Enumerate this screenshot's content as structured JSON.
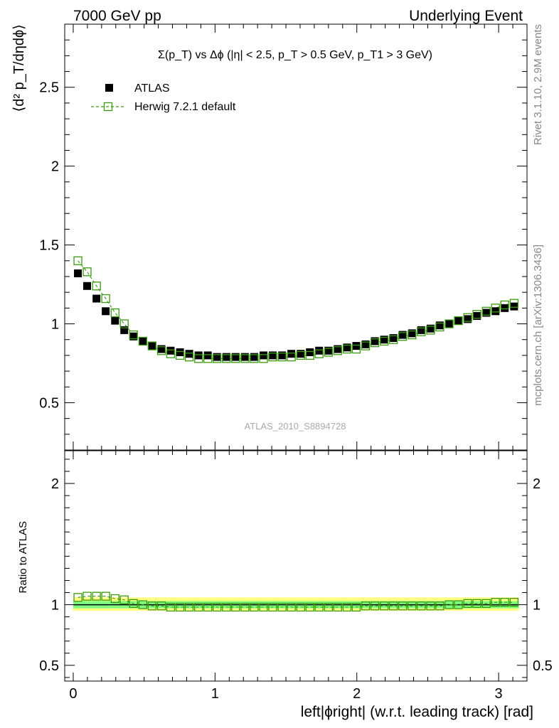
{
  "header": {
    "left": "7000 GeV pp",
    "right": "Underlying Event"
  },
  "side_labels": {
    "rivet": "Rivet 3.1.10,  2.9M events",
    "mcplots": "mcplots.cern.ch [arXiv:1306.3436]"
  },
  "watermark": "ATLAS_2010_S8894728",
  "chart_data": [
    {
      "type": "scatter",
      "title": "Σ(p_T) vs Δϕ (|η| < 2.5, p_T > 0.5 GeV, p_T1 > 3 GeV)",
      "ylabel": "⟨d² p_T/dηdϕ⟩",
      "xlim": [
        -0.06,
        3.2
      ],
      "ylim": [
        0.2,
        2.9
      ],
      "y_ticks": [
        0.5,
        1,
        1.5,
        2,
        2.5
      ],
      "y_tick_labels": [
        "0.5",
        "1",
        "1.5",
        "2",
        "2.5"
      ],
      "legend": {
        "placement": "top-left",
        "entries": [
          "ATLAS",
          "Herwig 7.2.1 default"
        ]
      },
      "x": [
        0.033,
        0.098,
        0.164,
        0.229,
        0.295,
        0.36,
        0.425,
        0.491,
        0.556,
        0.622,
        0.687,
        0.753,
        0.818,
        0.884,
        0.949,
        1.014,
        1.08,
        1.145,
        1.211,
        1.276,
        1.342,
        1.407,
        1.473,
        1.538,
        1.604,
        1.669,
        1.734,
        1.8,
        1.865,
        1.931,
        1.996,
        2.062,
        2.127,
        2.193,
        2.258,
        2.323,
        2.389,
        2.454,
        2.52,
        2.585,
        2.651,
        2.716,
        2.782,
        2.847,
        2.913,
        2.978,
        3.043,
        3.109
      ],
      "series": [
        {
          "name": "ATLAS",
          "color": "#000000",
          "marker": "filled-square",
          "values": [
            1.32,
            1.24,
            1.16,
            1.08,
            1.02,
            0.96,
            0.92,
            0.89,
            0.86,
            0.84,
            0.83,
            0.82,
            0.81,
            0.8,
            0.8,
            0.79,
            0.79,
            0.79,
            0.79,
            0.79,
            0.8,
            0.8,
            0.8,
            0.81,
            0.81,
            0.82,
            0.83,
            0.83,
            0.84,
            0.85,
            0.86,
            0.87,
            0.89,
            0.9,
            0.91,
            0.93,
            0.94,
            0.96,
            0.97,
            0.99,
            1.0,
            1.02,
            1.03,
            1.05,
            1.07,
            1.08,
            1.1,
            1.11
          ]
        },
        {
          "name": "Herwig 7.2.1 default",
          "color": "#3a9a0e",
          "marker": "open-square-dashed",
          "values": [
            1.4,
            1.33,
            1.24,
            1.16,
            1.07,
            1.0,
            0.93,
            0.89,
            0.86,
            0.83,
            0.81,
            0.8,
            0.79,
            0.78,
            0.78,
            0.78,
            0.78,
            0.78,
            0.78,
            0.78,
            0.78,
            0.79,
            0.79,
            0.79,
            0.8,
            0.8,
            0.81,
            0.82,
            0.83,
            0.84,
            0.84,
            0.86,
            0.88,
            0.89,
            0.9,
            0.92,
            0.93,
            0.95,
            0.96,
            0.98,
            1.0,
            1.02,
            1.04,
            1.06,
            1.08,
            1.1,
            1.12,
            1.13
          ]
        }
      ]
    },
    {
      "type": "scatter",
      "ylabel": "Ratio to ATLAS",
      "xlabel": "left|ϕright| (w.r.t. leading track) [rad]",
      "xlim": [
        -0.06,
        3.2
      ],
      "ylim": [
        0.37,
        2.27
      ],
      "x_ticks": [
        0,
        1,
        2,
        3
      ],
      "x_tick_labels": [
        "0",
        "1",
        "2",
        "3"
      ],
      "y_ticks": [
        0.5,
        1,
        2
      ],
      "y_tick_labels": [
        "0.5",
        "1",
        "2"
      ],
      "bands": {
        "outer": [
          0.95,
          1.06
        ],
        "inner": [
          0.97,
          1.03
        ],
        "outer_color": "#ffff80",
        "inner_color": "#80ff80"
      },
      "reference_line": 1.0,
      "x": [
        0.033,
        0.098,
        0.164,
        0.229,
        0.295,
        0.36,
        0.425,
        0.491,
        0.556,
        0.622,
        0.687,
        0.753,
        0.818,
        0.884,
        0.949,
        1.014,
        1.08,
        1.145,
        1.211,
        1.276,
        1.342,
        1.407,
        1.473,
        1.538,
        1.604,
        1.669,
        1.734,
        1.8,
        1.865,
        1.931,
        1.996,
        2.062,
        2.127,
        2.193,
        2.258,
        2.323,
        2.389,
        2.454,
        2.52,
        2.585,
        2.651,
        2.716,
        2.782,
        2.847,
        2.913,
        2.978,
        3.043,
        3.109
      ],
      "series": [
        {
          "name": "Herwig 7.2.1 default",
          "color": "#3a9a0e",
          "values": [
            1.06,
            1.07,
            1.07,
            1.07,
            1.05,
            1.04,
            1.01,
            1.0,
            0.99,
            0.99,
            0.98,
            0.98,
            0.98,
            0.98,
            0.98,
            0.98,
            0.98,
            0.98,
            0.98,
            0.98,
            0.98,
            0.98,
            0.98,
            0.98,
            0.98,
            0.98,
            0.98,
            0.98,
            0.98,
            0.98,
            0.98,
            0.99,
            0.99,
            0.99,
            0.99,
            0.99,
            0.99,
            0.99,
            0.99,
            0.99,
            1.0,
            1.0,
            1.01,
            1.01,
            1.01,
            1.02,
            1.02,
            1.02
          ]
        }
      ]
    }
  ]
}
